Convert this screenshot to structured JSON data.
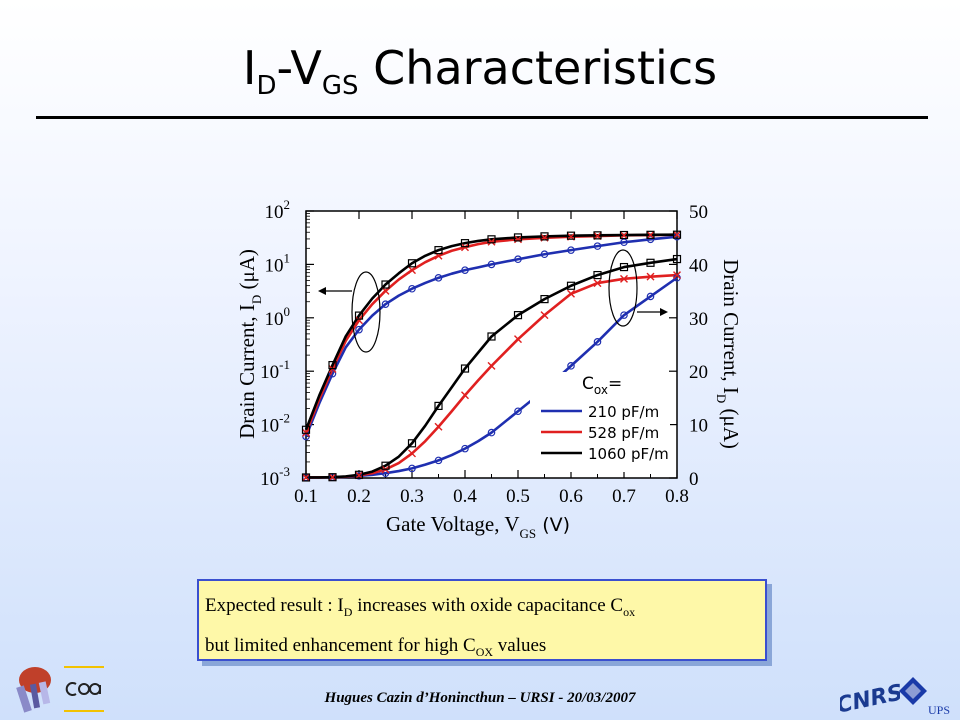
{
  "slide": {
    "title_main": "I",
    "title_sub_d": "D",
    "title_dash": "-V",
    "title_sub_gs": "GS",
    "title_rest": " Characteristics",
    "box_line1_a": "Expected result : I",
    "box_line1_sub": "D",
    "box_line1_b": " increases with oxide capacitance C",
    "box_line1_sub2": "ox",
    "box_line2_a": "but limited enhancement for high C",
    "box_line2_sub": "OX",
    "box_line2_b": " values",
    "footer": "Hugues Cazin d’Honincthun – URSI - 20/03/2007",
    "ups_label": "UPS",
    "logo_cnrs": "CNRS"
  },
  "chart_data": {
    "type": "line",
    "xlabel": "Gate Voltage, V",
    "xlabel_sub": "GS",
    "xlabel_unit": " (V)",
    "ylabel_left": "Drain Current, I",
    "ylabel_left_sub": "D",
    "ylabel_left_unit": " (μA)",
    "ylabel_right": "Drain Current, I",
    "ylabel_right_sub": "D",
    "ylabel_right_unit": " (μA)",
    "xlim": [
      0.1,
      0.8
    ],
    "ylim_left_log": [
      0.001,
      100
    ],
    "ylim_right": [
      0,
      50
    ],
    "xticks": [
      "0.1",
      "0.2",
      "0.3",
      "0.4",
      "0.5",
      "0.6",
      "0.7",
      "0.8"
    ],
    "yticks_left": [
      {
        "base": "10",
        "exp": "2"
      },
      {
        "base": "10",
        "exp": "1"
      },
      {
        "base": "10",
        "exp": "0"
      },
      {
        "base": "10",
        "exp": "-1"
      },
      {
        "base": "10",
        "exp": "-2"
      },
      {
        "base": "10",
        "exp": "-3"
      }
    ],
    "yticks_right": [
      "50",
      "40",
      "30",
      "20",
      "10",
      "0"
    ],
    "legend_title": "C",
    "legend_title_sub": "ox",
    "legend_title_eq": "=",
    "legend_position": "bottom-right",
    "x": [
      0.1,
      0.125,
      0.15,
      0.175,
      0.2,
      0.225,
      0.25,
      0.275,
      0.3,
      0.325,
      0.35,
      0.375,
      0.4,
      0.425,
      0.45,
      0.5,
      0.55,
      0.6,
      0.65,
      0.7,
      0.75,
      0.8
    ],
    "series": [
      {
        "name": "210 pF/m",
        "color": "#1f2fb0",
        "marker": "circle",
        "log_values": [
          0.006,
          0.025,
          0.09,
          0.28,
          0.6,
          1.1,
          1.8,
          2.6,
          3.5,
          4.5,
          5.6,
          6.7,
          7.8,
          8.8,
          10.0,
          12.5,
          15.5,
          18.5,
          22,
          26,
          29.5,
          33
        ],
        "lin_values": [
          0.1,
          0.1,
          0.15,
          0.2,
          0.4,
          0.6,
          0.9,
          1.3,
          1.8,
          2.5,
          3.3,
          4.3,
          5.5,
          6.9,
          8.5,
          12.5,
          16.5,
          21,
          25.5,
          30.5,
          34,
          37.5
        ]
      },
      {
        "name": "528 pF/m",
        "color": "#e02020",
        "marker": "x",
        "log_values": [
          0.007,
          0.03,
          0.11,
          0.37,
          0.9,
          1.8,
          3.2,
          5.2,
          7.8,
          11,
          14.5,
          18,
          21,
          24,
          26.5,
          29.5,
          31.5,
          33,
          34,
          35,
          35.5,
          36
        ],
        "lin_values": [
          0.1,
          0.1,
          0.15,
          0.25,
          0.5,
          0.9,
          1.6,
          2.8,
          4.6,
          6.9,
          9.6,
          12.5,
          15.5,
          18.3,
          21,
          26,
          30.5,
          34.5,
          36.5,
          37.3,
          37.7,
          38
        ]
      },
      {
        "name": "1060 pF/m",
        "color": "#000000",
        "marker": "square",
        "log_values": [
          0.008,
          0.035,
          0.13,
          0.45,
          1.1,
          2.3,
          4.2,
          6.8,
          10.5,
          14.5,
          18.5,
          22,
          25,
          27.5,
          29.5,
          32,
          33.5,
          34.5,
          35,
          35.5,
          35.8,
          36
        ],
        "lin_values": [
          0.1,
          0.1,
          0.15,
          0.3,
          0.6,
          1.2,
          2.3,
          4.0,
          6.5,
          9.8,
          13.5,
          17.0,
          20.5,
          23.5,
          26.5,
          30.5,
          33.5,
          36.0,
          38.0,
          39.5,
          40.3,
          41.0
        ]
      }
    ]
  }
}
